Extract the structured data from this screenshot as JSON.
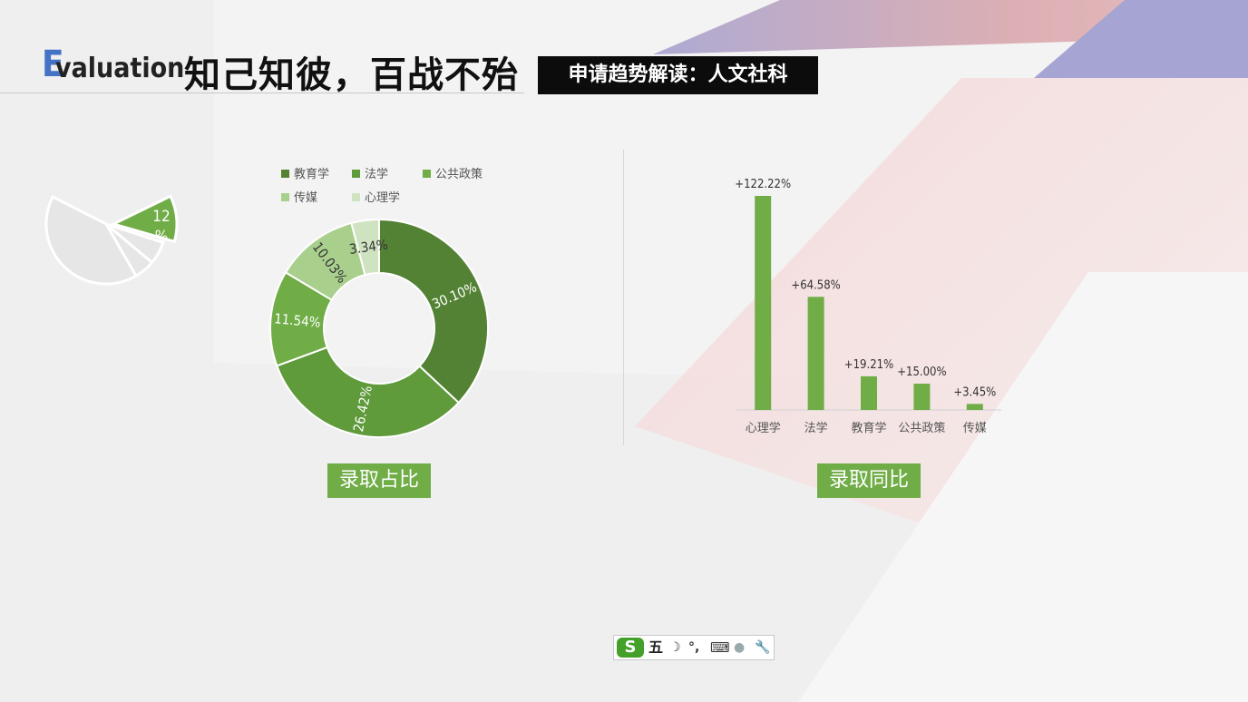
{
  "header": {
    "title_initial": "E",
    "title_rest": "valuation",
    "title_cn": "知己知彼，百战不殆",
    "subtitle": "申请趋势解读：人文社科"
  },
  "decor_pie": {
    "highlight_label": "12%"
  },
  "colors": {
    "accent": "#70ad47",
    "title_initial": "#4472c4",
    "subtitle_bg": "#0c0c0c"
  },
  "chart_data": [
    {
      "type": "pie",
      "variant": "donut",
      "legend_position": "top",
      "categories": [
        "教育学",
        "法学",
        "公共政策",
        "传媒",
        "心理学"
      ],
      "values": [
        30.1,
        26.42,
        11.54,
        10.03,
        3.34
      ],
      "value_labels": [
        "30.10%",
        "26.42%",
        "11.54%",
        "10.03%",
        "3.34%"
      ],
      "colors": [
        "#548235",
        "#5f9a3b",
        "#70ad47",
        "#a9cf8d",
        "#cfe3c1"
      ],
      "caption": "录取占比"
    },
    {
      "type": "bar",
      "categories": [
        "心理学",
        "法学",
        "教育学",
        "公共政策",
        "传媒"
      ],
      "values": [
        122.22,
        64.58,
        19.21,
        15.0,
        3.45
      ],
      "value_labels": [
        "+122.22%",
        "+64.58%",
        "+19.21%",
        "+15.00%",
        "+3.45%"
      ],
      "color": "#70ad47",
      "caption": "录取同比"
    }
  ],
  "ime_toolbar": {
    "logo": "S",
    "mode": "五",
    "moon": "☽",
    "punct": "°,",
    "keyboard": "⌨",
    "user": "●",
    "tool": "🔧"
  }
}
